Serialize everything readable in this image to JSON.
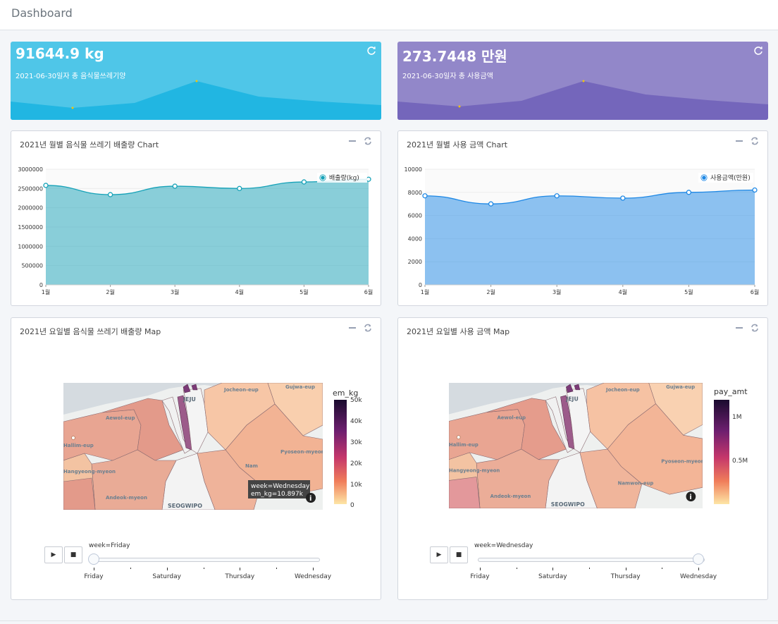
{
  "header": {
    "title": "Dashboard"
  },
  "stats": [
    {
      "value": "91644.9 kg",
      "subtitle": "2021-06-30일자 총 음식물쓰레기양",
      "bg": "#4fc6e8",
      "fill": "#21b6e2"
    },
    {
      "value": "273.7448 만원",
      "subtitle": "2021-06-30일자 총 사용금액",
      "bg": "#9287c9",
      "fill": "#7466bb"
    }
  ],
  "cards": {
    "waste_chart_title": "2021년 월별 음식물 쓰레기 배출량 Chart",
    "amount_chart_title": "2021년 월별 사용 금액 Chart",
    "waste_map_title": "2021년 요일별 음식물 쓰레기 배출량 Map",
    "amount_map_title": "2021년 요일별 사용 금액 Map"
  },
  "chart_data": [
    {
      "type": "area",
      "categories": [
        "1월",
        "2월",
        "3월",
        "4월",
        "5월",
        "6월"
      ],
      "series": [
        {
          "name": "배출량(kg)",
          "values": [
            2580000,
            2340000,
            2560000,
            2500000,
            2670000,
            2740000
          ]
        }
      ],
      "yticks": [
        "0",
        "500000",
        "1000000",
        "1500000",
        "2000000",
        "2500000",
        "3000000"
      ],
      "ylim": [
        0,
        3000000
      ],
      "legend": "top-right",
      "color": "#17a2b8"
    },
    {
      "type": "area",
      "categories": [
        "1월",
        "2월",
        "3월",
        "4월",
        "5월",
        "6월"
      ],
      "series": [
        {
          "name": "사용금액(만원)",
          "values": [
            7700,
            7000,
            7700,
            7500,
            8000,
            8200
          ]
        }
      ],
      "yticks": [
        "0",
        "2000",
        "4000",
        "6000",
        "8000",
        "10000"
      ],
      "ylim": [
        0,
        10000
      ],
      "legend": "top-right",
      "color": "#1e88e5"
    }
  ],
  "maps": [
    {
      "colorbar_title": "em_kg",
      "colorbar_ticks": [
        "50k",
        "40k",
        "30k",
        "20k",
        "10k",
        "0"
      ],
      "tooltip_line1": "week=Wednesday",
      "tooltip_line2": "em_kg=10.897k",
      "slider_label": "week=Friday",
      "slider_value": 0,
      "steps": [
        "Friday",
        "Saturday",
        "Thursday",
        "Wednesday"
      ],
      "labels": [
        "Aewol-eup",
        "Jocheon-eup",
        "Gujwa-eup",
        "Hallim-eup",
        "Pyoseon-myeon",
        "Andeok-myeon",
        "SEOGWIPO",
        "Hangyeong-myeon",
        "JEJU",
        "Nam"
      ]
    },
    {
      "colorbar_title": "pay_amt",
      "colorbar_ticks": [
        "1M",
        "0.5M"
      ],
      "slider_label": "week=Wednesday",
      "slider_value": 1,
      "steps": [
        "Friday",
        "Saturday",
        "Thursday",
        "Wednesday"
      ],
      "labels": [
        "Aewol-eup",
        "Jocheon-eup",
        "Gujwa-eup",
        "Hallim-eup",
        "Pyoseon-myeon",
        "Namwon-eup",
        "Andeok-myeon",
        "SEOGWIPO",
        "Hangyeong-myeon",
        "JEJU"
      ]
    }
  ],
  "icons": {
    "refresh": "refresh-icon",
    "minimize": "minus-icon",
    "reload": "sync-icon",
    "info": "info-icon",
    "play": "play-icon",
    "stop": "stop-icon"
  },
  "controls": {
    "play": "▶",
    "stop": "■"
  }
}
